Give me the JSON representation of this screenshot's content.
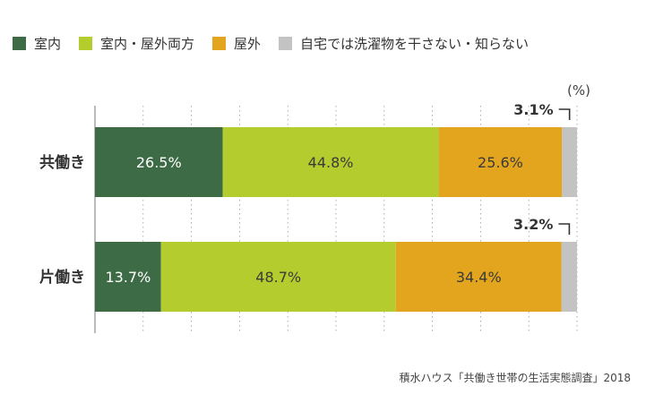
{
  "legend": [
    {
      "label": "室内",
      "color": "#3d6b45"
    },
    {
      "label": "室内・屋外両方",
      "color": "#b5cc2e"
    },
    {
      "label": "屋外",
      "color": "#e3a51d"
    },
    {
      "label": "自宅では洗濯物を干さない・知らない",
      "color": "#c3c3c3"
    }
  ],
  "unit_label": "(%)",
  "source": "積水ハウス「共働き世帯の生活実態調査」2018",
  "chart_data": {
    "type": "bar",
    "orientation": "horizontal",
    "stacked": true,
    "categories": [
      "共働き",
      "片働き"
    ],
    "series": [
      {
        "name": "室内",
        "values": [
          26.5,
          13.7
        ],
        "color": "#3d6b45"
      },
      {
        "name": "室内・屋外両方",
        "values": [
          44.8,
          48.7
        ],
        "color": "#b5cc2e"
      },
      {
        "name": "屋外",
        "values": [
          25.6,
          34.4
        ],
        "color": "#e3a51d"
      },
      {
        "name": "自宅では洗濯物を干さない・知らない",
        "values": [
          3.1,
          3.2
        ],
        "color": "#c3c3c3"
      }
    ],
    "data_labels": [
      [
        "26.5%",
        "44.8%",
        "25.6%",
        "3.1%"
      ],
      [
        "13.7%",
        "48.7%",
        "34.4%",
        "3.2%"
      ]
    ],
    "ylabel": "(%)",
    "xlim": [
      0,
      100
    ],
    "grid": true,
    "legend_position": "top"
  }
}
